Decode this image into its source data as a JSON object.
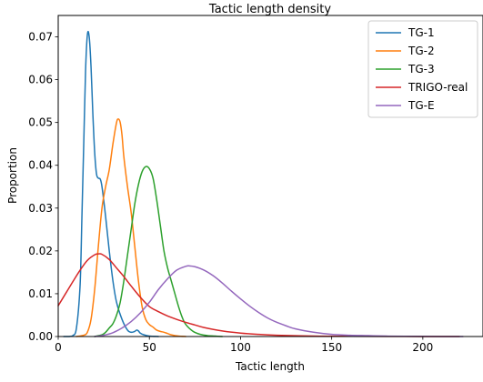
{
  "chart_data": {
    "type": "line",
    "title": "Tactic length density",
    "xlabel": "Tactic length",
    "ylabel": "Proportion",
    "xlim": [
      0,
      233
    ],
    "ylim": [
      0,
      0.075
    ],
    "xticks": [
      0,
      50,
      100,
      150,
      200
    ],
    "xtick_labels": [
      "0",
      "50",
      "100",
      "150",
      "200"
    ],
    "yticks": [
      0,
      0.01,
      0.02,
      0.03,
      0.04,
      0.05,
      0.06,
      0.07
    ],
    "ytick_labels": [
      "0.00",
      "0.01",
      "0.02",
      "0.03",
      "0.04",
      "0.05",
      "0.06",
      "0.07"
    ],
    "grid": false,
    "legend_position": "top-right",
    "series": [
      {
        "name": "TG-1",
        "color": "#1f77b4",
        "x": [
          3,
          6,
          8,
          10,
          12,
          13,
          14,
          15,
          16,
          17,
          18,
          19,
          20,
          21,
          22,
          23,
          24,
          26,
          28,
          30,
          32,
          35,
          38,
          40,
          42,
          43,
          44,
          45,
          47,
          50,
          55
        ],
        "y": [
          0,
          0,
          0.0002,
          0.002,
          0.012,
          0.028,
          0.045,
          0.062,
          0.0705,
          0.07,
          0.063,
          0.052,
          0.043,
          0.038,
          0.037,
          0.0368,
          0.035,
          0.028,
          0.02,
          0.013,
          0.008,
          0.004,
          0.0015,
          0.001,
          0.0012,
          0.0015,
          0.0013,
          0.0008,
          0.0004,
          0.0001,
          0
        ]
      },
      {
        "name": "TG-2",
        "color": "#ff7f0e",
        "x": [
          10,
          14,
          16,
          18,
          20,
          22,
          24,
          26,
          28,
          30,
          32,
          33,
          34,
          35,
          36,
          38,
          40,
          42,
          44,
          46,
          48,
          50,
          52,
          54,
          56,
          58,
          60,
          62,
          66,
          70
        ],
        "y": [
          0,
          0.0003,
          0.001,
          0.004,
          0.011,
          0.021,
          0.03,
          0.035,
          0.039,
          0.045,
          0.05,
          0.0508,
          0.05,
          0.047,
          0.042,
          0.035,
          0.029,
          0.021,
          0.013,
          0.007,
          0.004,
          0.0028,
          0.0022,
          0.0015,
          0.0012,
          0.001,
          0.0007,
          0.0004,
          0.0001,
          0
        ]
      },
      {
        "name": "TG-3",
        "color": "#2ca02c",
        "x": [
          20,
          24,
          26,
          28,
          30,
          32,
          34,
          36,
          38,
          40,
          42,
          44,
          46,
          48,
          50,
          52,
          54,
          56,
          58,
          60,
          62,
          64,
          66,
          68,
          70,
          74,
          78,
          82,
          86,
          90
        ],
        "y": [
          0,
          0.0004,
          0.001,
          0.002,
          0.003,
          0.005,
          0.008,
          0.013,
          0.019,
          0.025,
          0.031,
          0.0355,
          0.0385,
          0.0397,
          0.0392,
          0.037,
          0.032,
          0.026,
          0.02,
          0.016,
          0.013,
          0.01,
          0.007,
          0.0045,
          0.0028,
          0.0012,
          0.0005,
          0.0002,
          0.0001,
          0
        ]
      },
      {
        "name": "TRIGO-real",
        "color": "#d62728",
        "x": [
          0,
          4,
          8,
          12,
          16,
          20,
          22,
          24,
          28,
          32,
          36,
          40,
          45,
          50,
          55,
          60,
          65,
          70,
          75,
          80,
          90,
          100,
          110,
          120,
          140,
          160,
          180,
          200,
          220
        ],
        "y": [
          0.0072,
          0.01,
          0.0128,
          0.0155,
          0.0178,
          0.0191,
          0.0193,
          0.0192,
          0.018,
          0.016,
          0.014,
          0.0118,
          0.0092,
          0.007,
          0.0058,
          0.0048,
          0.004,
          0.0033,
          0.0027,
          0.0021,
          0.0013,
          0.0008,
          0.0005,
          0.0003,
          0.0001,
          5e-05,
          2e-05,
          1e-05,
          0
        ]
      },
      {
        "name": "TG-E",
        "color": "#9467bd",
        "x": [
          20,
          25,
          30,
          35,
          40,
          45,
          50,
          55,
          60,
          65,
          70,
          72,
          75,
          80,
          85,
          90,
          95,
          100,
          105,
          110,
          115,
          120,
          125,
          130,
          140,
          150,
          160,
          170,
          180,
          190,
          200,
          210,
          222
        ],
        "y": [
          0,
          0.0003,
          0.0009,
          0.002,
          0.0035,
          0.0055,
          0.008,
          0.011,
          0.0135,
          0.0155,
          0.0164,
          0.0165,
          0.0163,
          0.0155,
          0.0142,
          0.0125,
          0.0106,
          0.0088,
          0.0071,
          0.0056,
          0.0043,
          0.0033,
          0.0025,
          0.0018,
          0.001,
          0.0005,
          0.0003,
          0.0002,
          0.0001,
          5e-05,
          2e-05,
          1e-05,
          0
        ]
      }
    ]
  }
}
